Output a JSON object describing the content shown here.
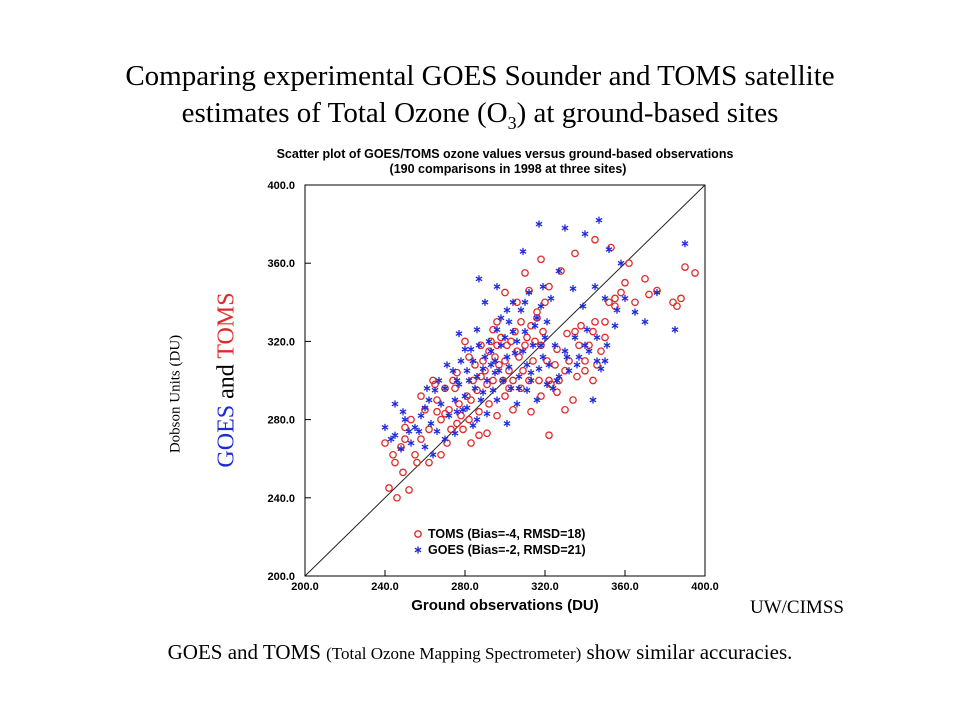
{
  "slide": {
    "title_line1": "Comparing experimental GOES Sounder and TOMS satellite",
    "title_line2_pre": "estimates of Total Ozone (O",
    "title_sub": "3",
    "title_line2_post": ") at ground-based sites",
    "ylabel_small": "Dobson Units (DU)",
    "ylabel_goes": "GOES",
    "ylabel_and": " and ",
    "ylabel_toms": "TOMS",
    "credit": "UW/CIMSS",
    "caption_a": "GOES and TOMS ",
    "caption_b": "(Total Ozone Mapping Spectrometer)",
    "caption_c": " show similar accuracies.",
    "colors": {
      "goes": "#1f2ad6",
      "toms": "#e02a2a"
    }
  },
  "chart_data": {
    "type": "scatter",
    "title": "Scatter plot of GOES/TOMS ozone values versus ground-based observations",
    "subtitle": "(190 comparisons in 1998 at three sites)",
    "xlabel": "Ground observations (DU)",
    "xlim": [
      200,
      400
    ],
    "ylim": [
      200,
      400
    ],
    "xticks": [
      "200.0",
      "240.0",
      "280.0",
      "320.0",
      "360.0",
      "400.0"
    ],
    "yticks": [
      "200.0",
      "240.0",
      "280.0",
      "320.0",
      "360.0",
      "400.0"
    ],
    "reference_line": "1:1",
    "legend_position": "bottom-right",
    "series": [
      {
        "name": "TOMS (Bias=-4, RMSD=18)",
        "marker": "circle",
        "color": "#e02a2a",
        "points": [
          [
            242,
            245
          ],
          [
            245,
            258
          ],
          [
            246,
            240
          ],
          [
            248,
            266
          ],
          [
            249,
            253
          ],
          [
            250,
            270
          ],
          [
            252,
            244
          ],
          [
            255,
            262
          ],
          [
            258,
            270
          ],
          [
            260,
            285
          ],
          [
            262,
            275
          ],
          [
            264,
            300
          ],
          [
            265,
            298
          ],
          [
            266,
            290
          ],
          [
            268,
            280
          ],
          [
            270,
            283
          ],
          [
            272,
            285
          ],
          [
            273,
            275
          ],
          [
            274,
            300
          ],
          [
            275,
            296
          ],
          [
            277,
            288
          ],
          [
            278,
            282
          ],
          [
            279,
            275
          ],
          [
            280,
            320
          ],
          [
            281,
            292
          ],
          [
            282,
            280
          ],
          [
            283,
            290
          ],
          [
            284,
            300
          ],
          [
            285,
            308
          ],
          [
            286,
            295
          ],
          [
            287,
            284
          ],
          [
            288,
            302
          ],
          [
            289,
            310
          ],
          [
            290,
            305
          ],
          [
            291,
            298
          ],
          [
            292,
            315
          ],
          [
            293,
            320
          ],
          [
            294,
            300
          ],
          [
            295,
            312
          ],
          [
            296,
            318
          ],
          [
            297,
            308
          ],
          [
            298,
            322
          ],
          [
            299,
            300
          ],
          [
            300,
            310
          ],
          [
            301,
            318
          ],
          [
            302,
            305
          ],
          [
            303,
            320
          ],
          [
            304,
            300
          ],
          [
            305,
            325
          ],
          [
            306,
            315
          ],
          [
            307,
            312
          ],
          [
            308,
            330
          ],
          [
            309,
            305
          ],
          [
            310,
            318
          ],
          [
            311,
            322
          ],
          [
            312,
            300
          ],
          [
            313,
            328
          ],
          [
            314,
            310
          ],
          [
            315,
            320
          ],
          [
            316,
            335
          ],
          [
            317,
            300
          ],
          [
            318,
            318
          ],
          [
            319,
            325
          ],
          [
            320,
            340
          ],
          [
            321,
            310
          ],
          [
            322,
            300
          ],
          [
            323,
            298
          ],
          [
            325,
            308
          ],
          [
            327,
            300
          ],
          [
            330,
            305
          ],
          [
            332,
            310
          ],
          [
            335,
            325
          ],
          [
            337,
            318
          ],
          [
            338,
            328
          ],
          [
            340,
            305
          ],
          [
            342,
            318
          ],
          [
            344,
            300
          ],
          [
            345,
            330
          ],
          [
            346,
            308
          ],
          [
            348,
            315
          ],
          [
            350,
            322
          ],
          [
            352,
            340
          ],
          [
            355,
            338
          ],
          [
            358,
            345
          ],
          [
            360,
            350
          ],
          [
            362,
            360
          ],
          [
            365,
            340
          ],
          [
            370,
            352
          ],
          [
            372,
            344
          ],
          [
            376,
            346
          ],
          [
            384,
            340
          ],
          [
            386,
            338
          ],
          [
            388,
            342
          ],
          [
            390,
            358
          ],
          [
            395,
            355
          ],
          [
            240,
            268
          ],
          [
            244,
            262
          ],
          [
            250,
            276
          ],
          [
            256,
            258
          ],
          [
            262,
            258
          ],
          [
            268,
            262
          ],
          [
            271,
            268
          ],
          [
            276,
            278
          ],
          [
            283,
            268
          ],
          [
            287,
            272
          ],
          [
            291,
            273
          ],
          [
            296,
            282
          ],
          [
            300,
            292
          ],
          [
            304,
            285
          ],
          [
            308,
            296
          ],
          [
            313,
            284
          ],
          [
            318,
            292
          ],
          [
            322,
            272
          ],
          [
            326,
            294
          ],
          [
            330,
            285
          ],
          [
            334,
            290
          ],
          [
            336,
            302
          ],
          [
            340,
            310
          ],
          [
            344,
            325
          ],
          [
            350,
            330
          ],
          [
            355,
            342
          ],
          [
            310,
            355
          ],
          [
            318,
            362
          ],
          [
            322,
            348
          ],
          [
            328,
            356
          ],
          [
            335,
            365
          ],
          [
            345,
            372
          ],
          [
            353,
            368
          ],
          [
            316,
            332
          ],
          [
            306,
            340
          ],
          [
            294,
            326
          ],
          [
            288,
            318
          ],
          [
            282,
            312
          ],
          [
            276,
            304
          ],
          [
            270,
            296
          ],
          [
            266,
            284
          ],
          [
            258,
            292
          ],
          [
            253,
            280
          ],
          [
            300,
            345
          ],
          [
            296,
            330
          ],
          [
            312,
            346
          ],
          [
            326,
            316
          ],
          [
            331,
            324
          ],
          [
            302,
            296
          ],
          [
            292,
            288
          ]
        ]
      },
      {
        "name": "GOES (Bias=-2, RMSD=21)",
        "marker": "asterisk",
        "color": "#1f2ad6",
        "points": [
          [
            240,
            276
          ],
          [
            243,
            270
          ],
          [
            245,
            272
          ],
          [
            248,
            265
          ],
          [
            250,
            280
          ],
          [
            252,
            274
          ],
          [
            255,
            276
          ],
          [
            258,
            282
          ],
          [
            260,
            286
          ],
          [
            262,
            290
          ],
          [
            263,
            278
          ],
          [
            265,
            295
          ],
          [
            267,
            300
          ],
          [
            268,
            288
          ],
          [
            270,
            296
          ],
          [
            272,
            282
          ],
          [
            274,
            305
          ],
          [
            275,
            290
          ],
          [
            276,
            300
          ],
          [
            277,
            298
          ],
          [
            278,
            310
          ],
          [
            279,
            285
          ],
          [
            280,
            292
          ],
          [
            281,
            305
          ],
          [
            282,
            300
          ],
          [
            283,
            316
          ],
          [
            284,
            310
          ],
          [
            285,
            296
          ],
          [
            286,
            302
          ],
          [
            287,
            318
          ],
          [
            288,
            290
          ],
          [
            289,
            306
          ],
          [
            290,
            312
          ],
          [
            291,
            300
          ],
          [
            292,
            320
          ],
          [
            293,
            308
          ],
          [
            294,
            295
          ],
          [
            295,
            310
          ],
          [
            296,
            326
          ],
          [
            297,
            305
          ],
          [
            298,
            318
          ],
          [
            299,
            300
          ],
          [
            300,
            322
          ],
          [
            301,
            312
          ],
          [
            302,
            330
          ],
          [
            303,
            296
          ],
          [
            304,
            340
          ],
          [
            305,
            314
          ],
          [
            306,
            320
          ],
          [
            307,
            302
          ],
          [
            308,
            336
          ],
          [
            309,
            315
          ],
          [
            310,
            325
          ],
          [
            311,
            308
          ],
          [
            312,
            345
          ],
          [
            313,
            300
          ],
          [
            314,
            318
          ],
          [
            315,
            328
          ],
          [
            316,
            332
          ],
          [
            317,
            306
          ],
          [
            318,
            338
          ],
          [
            319,
            312
          ],
          [
            320,
            322
          ],
          [
            321,
            330
          ],
          [
            322,
            308
          ],
          [
            324,
            296
          ],
          [
            325,
            318
          ],
          [
            327,
            302
          ],
          [
            330,
            315
          ],
          [
            332,
            305
          ],
          [
            335,
            322
          ],
          [
            337,
            312
          ],
          [
            340,
            318
          ],
          [
            342,
            315
          ],
          [
            344,
            290
          ],
          [
            346,
            310
          ],
          [
            348,
            306
          ],
          [
            350,
            310
          ],
          [
            355,
            328
          ],
          [
            360,
            342
          ],
          [
            365,
            335
          ],
          [
            370,
            330
          ],
          [
            376,
            345
          ],
          [
            385,
            326
          ],
          [
            390,
            370
          ],
          [
            287,
            352
          ],
          [
            290,
            340
          ],
          [
            296,
            348
          ],
          [
            301,
            336
          ],
          [
            309,
            366
          ],
          [
            317,
            380
          ],
          [
            330,
            378
          ],
          [
            340,
            375
          ],
          [
            347,
            382
          ],
          [
            352,
            367
          ],
          [
            358,
            360
          ],
          [
            245,
            288
          ],
          [
            249,
            284
          ],
          [
            253,
            268
          ],
          [
            257,
            274
          ],
          [
            261,
            296
          ],
          [
            266,
            274
          ],
          [
            271,
            308
          ],
          [
            276,
            284
          ],
          [
            281,
            286
          ],
          [
            286,
            280
          ],
          [
            291,
            283
          ],
          [
            296,
            290
          ],
          [
            301,
            278
          ],
          [
            306,
            288
          ],
          [
            311,
            295
          ],
          [
            316,
            290
          ],
          [
            321,
            298
          ],
          [
            326,
            300
          ],
          [
            331,
            312
          ],
          [
            336,
            308
          ],
          [
            341,
            326
          ],
          [
            346,
            322
          ],
          [
            351,
            318
          ],
          [
            356,
            336
          ],
          [
            280,
            316
          ],
          [
            277,
            324
          ],
          [
            286,
            326
          ],
          [
            293,
            315
          ],
          [
            298,
            332
          ],
          [
            304,
            325
          ],
          [
            310,
            340
          ],
          [
            319,
            348
          ],
          [
            323,
            342
          ],
          [
            327,
            356
          ],
          [
            334,
            347
          ],
          [
            339,
            338
          ],
          [
            345,
            348
          ],
          [
            350,
            342
          ],
          [
            260,
            266
          ],
          [
            264,
            262
          ],
          [
            270,
            270
          ],
          [
            275,
            273
          ],
          [
            284,
            277
          ],
          [
            289,
            294
          ],
          [
            295,
            304
          ],
          [
            302,
            307
          ],
          [
            307,
            296
          ],
          [
            313,
            304
          ],
          [
            318,
            318
          ]
        ]
      }
    ]
  }
}
